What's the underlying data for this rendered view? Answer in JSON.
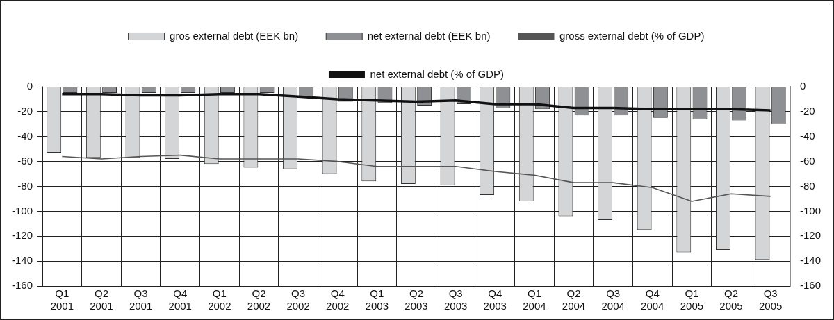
{
  "chart_data": {
    "type": "bar",
    "categories": [
      "Q1\n2001",
      "Q2\n2001",
      "Q3\n2001",
      "Q4\n2001",
      "Q1\n2002",
      "Q2\n2002",
      "Q3\n2002",
      "Q4\n2002",
      "Q1\n2003",
      "Q2\n2003",
      "Q3\n2003",
      "Q4\n2003",
      "Q1\n2004",
      "Q2\n2004",
      "Q3\n2004",
      "Q4\n2004",
      "Q1\n2005",
      "Q2\n2005",
      "Q3\n2005"
    ],
    "series": [
      {
        "name": "gros external debt (EEK bn)",
        "color": "#d4d5d7",
        "values": [
          -53,
          -57,
          -57,
          -58,
          -62,
          -65,
          -66,
          -70,
          -76,
          -78,
          -79,
          -87,
          -92,
          -104,
          -107,
          -115,
          -133,
          -131,
          -139
        ]
      },
      {
        "name": "net external debt (EEK bn)",
        "color": "#8f9093",
        "values": [
          -5,
          -5,
          -5,
          -5,
          -5,
          -5,
          -8,
          -12,
          -13,
          -15,
          -14,
          -17,
          -18,
          -23,
          -23,
          -25,
          -26,
          -27,
          -30
        ]
      },
      {
        "name": "gross external debt (% of GDP)",
        "type": "line",
        "color": "#555555",
        "values": [
          -56,
          -58,
          -56,
          -55,
          -58,
          -58,
          -58,
          -60,
          -64,
          -64,
          -64,
          -68,
          -71,
          -77,
          -77,
          -81,
          -92,
          -86,
          -88
        ]
      },
      {
        "name": "net external debt (% of GDP)",
        "type": "line",
        "color": "#111111",
        "values": [
          -6,
          -6,
          -7,
          -7,
          -6,
          -6,
          -8,
          -10,
          -11,
          -12,
          -11,
          -14,
          -14,
          -17,
          -17,
          -18,
          -18,
          -18,
          -19
        ]
      }
    ],
    "ylim": [
      -160,
      0
    ],
    "yticks": [
      -160,
      -140,
      -120,
      -100,
      -80,
      -60,
      -40,
      -20,
      0
    ],
    "y2lim": [
      -160,
      0
    ],
    "y2ticks": [
      -160,
      -140,
      -120,
      -100,
      -80,
      -60,
      -40,
      -20,
      0
    ],
    "grid": true,
    "legend": "top",
    "marker": "none",
    "line_style": "solid"
  }
}
